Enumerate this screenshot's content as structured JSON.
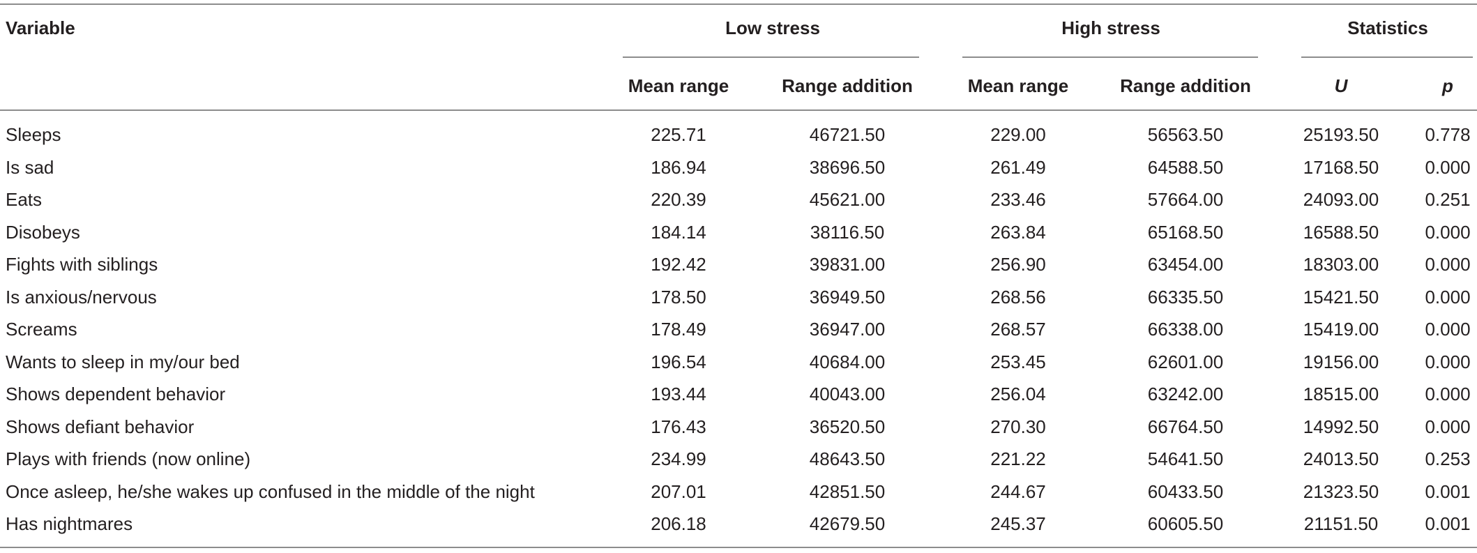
{
  "headers": {
    "variable": "Variable",
    "groups": [
      "Low stress",
      "High stress",
      "Statistics"
    ],
    "subheaders": [
      "Mean range",
      "Range addition",
      "Mean range",
      "Range addition",
      "U",
      "p"
    ]
  },
  "rows": [
    {
      "label": "Sleeps",
      "values": [
        "225.71",
        "46721.50",
        "229.00",
        "56563.50",
        "25193.50",
        "0.778"
      ]
    },
    {
      "label": "Is sad",
      "values": [
        "186.94",
        "38696.50",
        "261.49",
        "64588.50",
        "17168.50",
        "0.000"
      ]
    },
    {
      "label": "Eats",
      "values": [
        "220.39",
        "45621.00",
        "233.46",
        "57664.00",
        "24093.00",
        "0.251"
      ]
    },
    {
      "label": "Disobeys",
      "values": [
        "184.14",
        "38116.50",
        "263.84",
        "65168.50",
        "16588.50",
        "0.000"
      ]
    },
    {
      "label": "Fights with siblings",
      "values": [
        "192.42",
        "39831.00",
        "256.90",
        "63454.00",
        "18303.00",
        "0.000"
      ]
    },
    {
      "label": "Is anxious/nervous",
      "values": [
        "178.50",
        "36949.50",
        "268.56",
        "66335.50",
        "15421.50",
        "0.000"
      ]
    },
    {
      "label": "Screams",
      "values": [
        "178.49",
        "36947.00",
        "268.57",
        "66338.00",
        "15419.00",
        "0.000"
      ]
    },
    {
      "label": "Wants to sleep in my/our bed",
      "values": [
        "196.54",
        "40684.00",
        "253.45",
        "62601.00",
        "19156.00",
        "0.000"
      ]
    },
    {
      "label": "Shows dependent behavior",
      "values": [
        "193.44",
        "40043.00",
        "256.04",
        "63242.00",
        "18515.00",
        "0.000"
      ]
    },
    {
      "label": "Shows defiant behavior",
      "values": [
        "176.43",
        "36520.50",
        "270.30",
        "66764.50",
        "14992.50",
        "0.000"
      ]
    },
    {
      "label": "Plays with friends (now online)",
      "values": [
        "234.99",
        "48643.50",
        "221.22",
        "54641.50",
        "24013.50",
        "0.253"
      ]
    },
    {
      "label": "Once asleep, he/she wakes up confused in the middle of the night",
      "values": [
        "207.01",
        "42851.50",
        "244.67",
        "60433.50",
        "21323.50",
        "0.001"
      ]
    },
    {
      "label": "Has nightmares",
      "values": [
        "206.18",
        "42679.50",
        "245.37",
        "60605.50",
        "21151.50",
        "0.001"
      ]
    }
  ]
}
